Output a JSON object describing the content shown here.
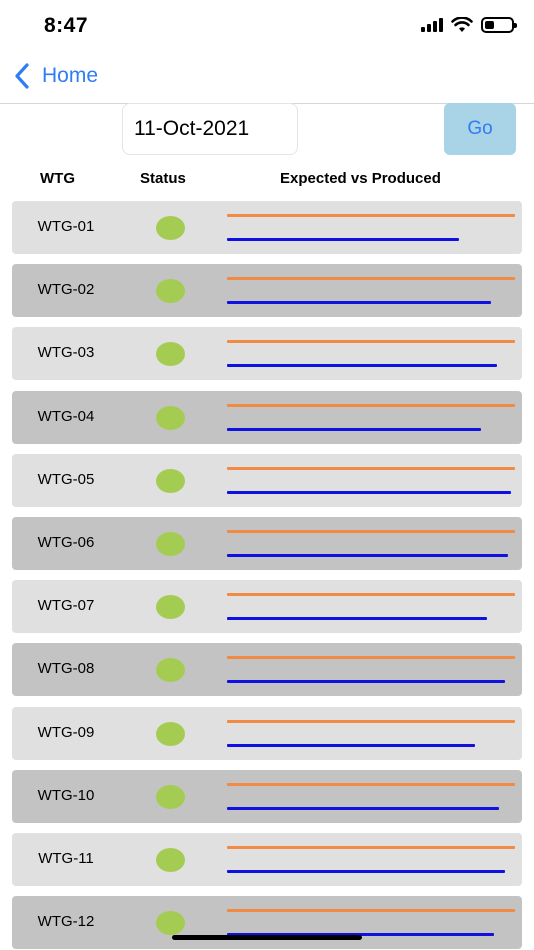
{
  "status_bar": {
    "time": "8:47",
    "icons": [
      "cellular-signal-icon",
      "wifi-icon",
      "battery-icon"
    ]
  },
  "nav": {
    "back_label": "Home",
    "back_icon": "chevron-left-icon"
  },
  "date_field": {
    "value": "11-Oct-2021"
  },
  "go_button": {
    "label": "Go"
  },
  "table": {
    "headers": {
      "wtg": "WTG",
      "status": "Status",
      "expected_vs_produced": "Expected vs Produced"
    },
    "rows": [
      {
        "name": "WTG-01",
        "status": "ok",
        "expected": 1.0,
        "produced": 0.805
      },
      {
        "name": "WTG-02",
        "status": "ok",
        "expected": 1.0,
        "produced": 0.918
      },
      {
        "name": "WTG-03",
        "status": "ok",
        "expected": 1.0,
        "produced": 0.938
      },
      {
        "name": "WTG-04",
        "status": "ok",
        "expected": 1.0,
        "produced": 0.883
      },
      {
        "name": "WTG-05",
        "status": "ok",
        "expected": 1.0,
        "produced": 0.987
      },
      {
        "name": "WTG-06",
        "status": "ok",
        "expected": 1.0,
        "produced": 0.976
      },
      {
        "name": "WTG-07",
        "status": "ok",
        "expected": 1.0,
        "produced": 0.902
      },
      {
        "name": "WTG-08",
        "status": "ok",
        "expected": 1.0,
        "produced": 0.965
      },
      {
        "name": "WTG-09",
        "status": "ok",
        "expected": 1.0,
        "produced": 0.862
      },
      {
        "name": "WTG-10",
        "status": "ok",
        "expected": 1.0,
        "produced": 0.945
      },
      {
        "name": "WTG-11",
        "status": "ok",
        "expected": 1.0,
        "produced": 0.965
      },
      {
        "name": "WTG-12",
        "status": "ok",
        "expected": 1.0,
        "produced": 0.928
      }
    ]
  },
  "colors": {
    "accent": "#2f7df6",
    "go_button_bg": "#a9d3e6",
    "expected_line": "#f08a45",
    "produced_line": "#1010e0",
    "status_ok": "#a5cc52",
    "row_light": "#e0e0e0",
    "row_dark": "#c3c3c3"
  }
}
